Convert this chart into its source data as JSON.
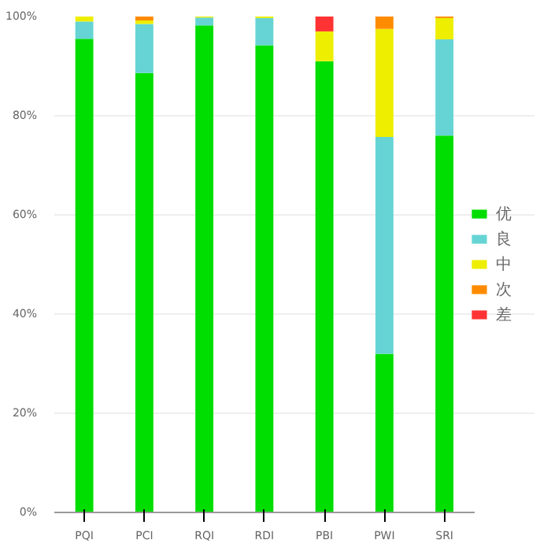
{
  "chart_data": {
    "type": "bar",
    "stacked": true,
    "categories": [
      "PQI",
      "PCI",
      "RQI",
      "RDI",
      "PBI",
      "PWI",
      "SRI"
    ],
    "series": [
      {
        "name": "优",
        "color": "#00dd00",
        "values": [
          95.5,
          88.6,
          98.2,
          94.2,
          91,
          32,
          76
        ]
      },
      {
        "name": "良",
        "color": "#66d4d4",
        "values": [
          3.5,
          9.9,
          1.6,
          5.5,
          0,
          43.7,
          19.4
        ]
      },
      {
        "name": "中",
        "color": "#eeee00",
        "values": [
          1,
          0.7,
          0.2,
          0.3,
          6,
          21.8,
          4.3
        ]
      },
      {
        "name": "次",
        "color": "#ff8c00",
        "values": [
          0,
          0.8,
          0,
          0,
          0,
          2.5,
          0.3
        ]
      },
      {
        "name": "差",
        "color": "#ff3333",
        "values": [
          0,
          0,
          0,
          0,
          3,
          0,
          0
        ]
      }
    ],
    "ylim": [
      0,
      100
    ],
    "yticks": [
      {
        "value": 0,
        "label": "0%"
      },
      {
        "value": 20,
        "label": "20%"
      },
      {
        "value": 40,
        "label": "40%"
      },
      {
        "value": 60,
        "label": "60%"
      },
      {
        "value": 80,
        "label": "80%"
      },
      {
        "value": 100,
        "label": "100%"
      }
    ],
    "grid": "y",
    "legend": "right"
  }
}
